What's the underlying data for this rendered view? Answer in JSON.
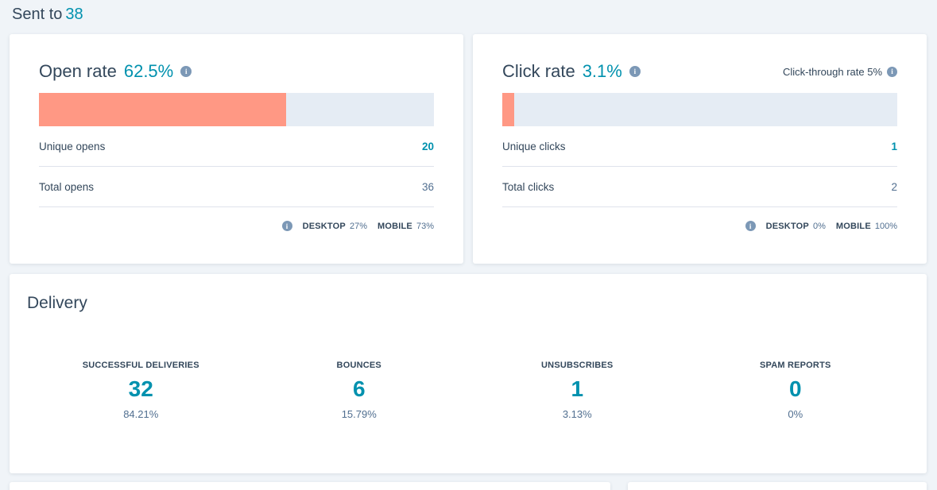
{
  "icons": {
    "info_glyph": "i"
  },
  "colors": {
    "teal": "#0091AE",
    "navy": "#33475B",
    "gray": "#516F90",
    "bar_fill": "#FF9884",
    "bar_background": "#E5ECF4",
    "page_background": "#F0F4F8",
    "divider": "#DFE3EB",
    "info_icon_background": "#7C98B6"
  },
  "header": {
    "sent_to_label": "Sent to",
    "sent_to_count": "38"
  },
  "open_rate_card": {
    "title": "Open rate",
    "value": "62.5%",
    "bar_fill_percent": 62.5,
    "rows": [
      {
        "label": "Unique opens",
        "value": "20"
      },
      {
        "label": "Total opens",
        "value": "36"
      }
    ],
    "devices": [
      {
        "label": "DESKTOP",
        "value": "27%"
      },
      {
        "label": "MOBILE",
        "value": "73%"
      }
    ]
  },
  "click_rate_card": {
    "title": "Click rate",
    "value": "3.1%",
    "secondary_label": "Click-through rate 5%",
    "bar_fill_percent": 3.1,
    "rows": [
      {
        "label": "Unique clicks",
        "value": "1"
      },
      {
        "label": "Total clicks",
        "value": "2"
      }
    ],
    "devices": [
      {
        "label": "DESKTOP",
        "value": "0%"
      },
      {
        "label": "MOBILE",
        "value": "100%"
      }
    ]
  },
  "delivery_card": {
    "title": "Delivery",
    "stats": [
      {
        "label": "SUCCESSFUL DELIVERIES",
        "value": "32",
        "percent": "84.21%"
      },
      {
        "label": "BOUNCES",
        "value": "6",
        "percent": "15.79%"
      },
      {
        "label": "UNSUBSCRIBES",
        "value": "1",
        "percent": "3.13%"
      },
      {
        "label": "SPAM REPORTS",
        "value": "0",
        "percent": "0%"
      }
    ]
  }
}
